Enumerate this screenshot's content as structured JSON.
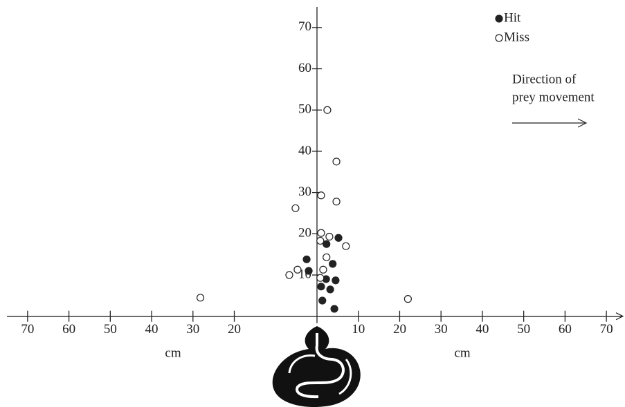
{
  "chart_data": {
    "type": "scatter",
    "xlabel": "cm",
    "annotation": [
      "Direction of",
      "prey movement"
    ],
    "xlim": [
      -75,
      74
    ],
    "ylim": [
      -22,
      75
    ],
    "xticks": [
      {
        "value": -70,
        "label": "70"
      },
      {
        "value": -60,
        "label": "60"
      },
      {
        "value": -50,
        "label": "50"
      },
      {
        "value": -40,
        "label": "40"
      },
      {
        "value": -30,
        "label": "30"
      },
      {
        "value": -20,
        "label": "20"
      },
      10,
      20,
      30,
      40,
      50,
      60,
      70
    ],
    "yticks": [
      10,
      20,
      30,
      40,
      50,
      60,
      70
    ],
    "legend": "upper right",
    "series": [
      {
        "name": "Hit",
        "color": "#222222",
        "x": [
          5.2,
          2.3,
          -2.5,
          3.8,
          -2,
          2.2,
          4.5,
          1,
          3.2,
          1.3,
          4.2
        ],
        "values": [
          19,
          17.5,
          13.8,
          12.7,
          11,
          9,
          8.7,
          7.2,
          6.5,
          3.8,
          1.8
        ]
      },
      {
        "name": "Miss",
        "color": "#ffffff",
        "x": [
          -28.2,
          22,
          2.5,
          4.7,
          1,
          4.7,
          -5.2,
          1,
          3,
          0.8,
          7,
          2.3,
          -4.7,
          1.5,
          -6.7,
          0.8
        ],
        "values": [
          4.5,
          4.2,
          50,
          37.5,
          29.3,
          27.8,
          26.2,
          20.2,
          19.3,
          18.3,
          17,
          14.3,
          11.3,
          11.3,
          10,
          9.3
        ]
      }
    ]
  }
}
